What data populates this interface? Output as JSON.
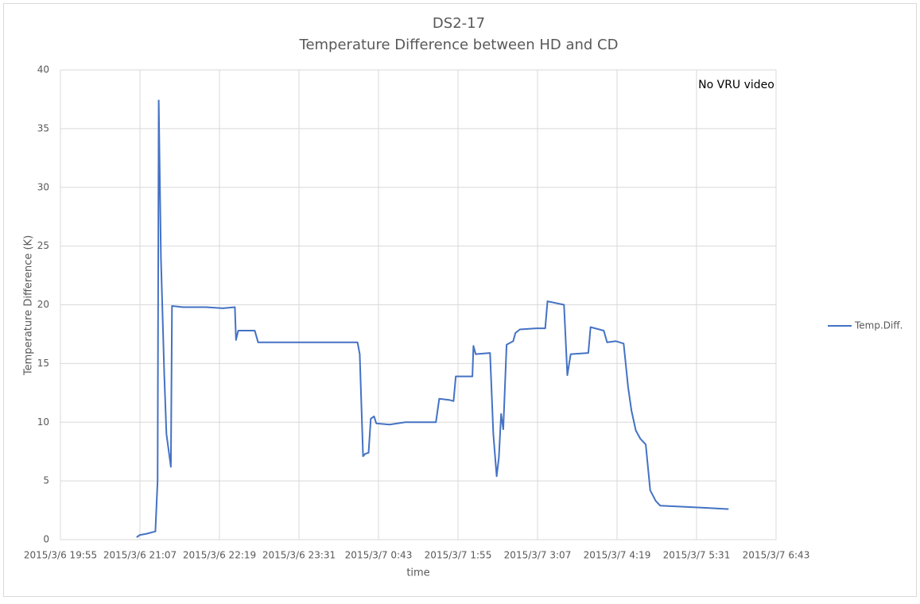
{
  "chart_data": {
    "type": "line",
    "title": "DS2-17",
    "subtitle": "Temperature Difference between HD and CD",
    "x_label": "time",
    "y_label": "Temperature Difference (K)",
    "annotation": "No VRU video",
    "x": [
      "2015/3/6 21:04",
      "2015/3/6 21:07",
      "2015/3/6 21:13",
      "2015/3/6 21:21",
      "2015/3/6 21:23",
      "2015/3/6 21:24",
      "2015/3/6 21:26",
      "2015/3/6 21:29",
      "2015/3/6 21:31",
      "2015/3/6 21:35",
      "2015/3/6 21:36",
      "2015/3/6 21:46",
      "2015/3/6 22:07",
      "2015/3/6 22:22",
      "2015/3/6 22:33",
      "2015/3/6 22:34",
      "2015/3/6 22:36",
      "2015/3/6 22:51",
      "2015/3/6 22:54",
      "2015/3/6 23:12",
      "2015/3/6 23:48",
      "2015/3/7 0:24",
      "2015/3/7 0:26",
      "2015/3/7 0:29",
      "2015/3/7 0:31",
      "2015/3/7 0:34",
      "2015/3/7 0:36",
      "2015/3/7 0:39",
      "2015/3/7 0:41",
      "2015/3/7 0:53",
      "2015/3/7 1:07",
      "2015/3/7 1:35",
      "2015/3/7 1:38",
      "2015/3/7 1:47",
      "2015/3/7 1:51",
      "2015/3/7 1:53",
      "2015/3/7 2:08",
      "2015/3/7 2:09",
      "2015/3/7 2:11",
      "2015/3/7 2:24",
      "2015/3/7 2:27",
      "2015/3/7 2:30",
      "2015/3/7 2:32",
      "2015/3/7 2:34",
      "2015/3/7 2:36",
      "2015/3/7 2:39",
      "2015/3/7 2:45",
      "2015/3/7 2:47",
      "2015/3/7 2:51",
      "2015/3/7 3:06",
      "2015/3/7 3:14",
      "2015/3/7 3:16",
      "2015/3/7 3:31",
      "2015/3/7 3:33",
      "2015/3/7 3:34",
      "2015/3/7 3:37",
      "2015/3/7 3:53",
      "2015/3/7 3:55",
      "2015/3/7 4:07",
      "2015/3/7 4:10",
      "2015/3/7 4:18",
      "2015/3/7 4:25",
      "2015/3/7 4:29",
      "2015/3/7 4:32",
      "2015/3/7 4:36",
      "2015/3/7 4:40",
      "2015/3/7 4:45",
      "2015/3/7 4:49",
      "2015/3/7 4:54",
      "2015/3/7 4:58",
      "2015/3/7 5:19",
      "2015/3/7 5:41",
      "2015/3/7 6:00"
    ],
    "series": [
      {
        "name": "Temp.Diff.",
        "color": "#4472c4",
        "values": [
          0.2,
          0.4,
          0.5,
          0.7,
          5,
          37.4,
          24,
          14,
          9,
          6.2,
          19.9,
          19.8,
          19.8,
          19.7,
          19.8,
          17,
          17.8,
          17.8,
          16.8,
          16.8,
          16.8,
          16.8,
          15.8,
          7.1,
          7.3,
          7.4,
          10.3,
          10.5,
          9.9,
          9.8,
          10,
          10,
          12,
          11.9,
          11.8,
          13.9,
          13.9,
          16.5,
          15.8,
          15.9,
          9,
          5.4,
          7,
          10.7,
          9.4,
          16.6,
          16.9,
          17.6,
          17.9,
          18,
          18,
          20.3,
          20,
          16,
          14,
          15.8,
          15.9,
          18.1,
          17.8,
          16.8,
          16.9,
          16.7,
          13,
          11,
          9.3,
          8.6,
          8.1,
          4.2,
          3.3,
          2.9,
          2.8,
          2.7,
          2.6
        ]
      }
    ],
    "xlim": [
      "2015/3/6 19:55",
      "2015/3/7 6:43"
    ],
    "xticks": [
      "2015/3/6 19:55",
      "2015/3/6 21:07",
      "2015/3/6 22:19",
      "2015/3/6 23:31",
      "2015/3/7 0:43",
      "2015/3/7 1:55",
      "2015/3/7 3:07",
      "2015/3/7 4:19",
      "2015/3/7 5:31",
      "2015/3/7 6:43"
    ],
    "ylim": [
      0,
      40
    ],
    "yticks": [
      0,
      5,
      10,
      15,
      20,
      25,
      30,
      35,
      40
    ],
    "grid": true,
    "legend": "right"
  }
}
